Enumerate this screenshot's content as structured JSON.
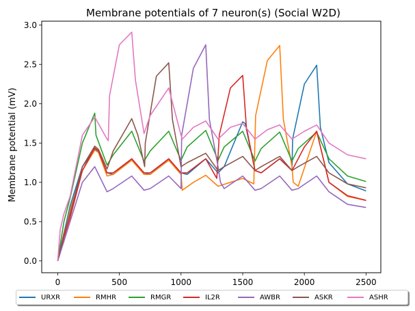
{
  "chart_data": {
    "type": "line",
    "title": "Membrane potentials of 7 neuron(s) (Social W2D)",
    "xlabel": "",
    "ylabel": "Membrane potential (mV)",
    "xlim": [
      -130,
      2620
    ],
    "ylim": [
      -0.15,
      3.05
    ],
    "xticks": [
      0,
      500,
      1000,
      1500,
      2000,
      2500
    ],
    "yticks": [
      0.0,
      0.5,
      1.0,
      1.5,
      2.0,
      2.5,
      3.0
    ],
    "ytick_labels": [
      "0.0",
      "0.5",
      "1.0",
      "1.5",
      "2.0",
      "2.5",
      "3.0"
    ],
    "legend_position": "bottom-below-axes",
    "grid": false,
    "series": [
      {
        "name": "URXR",
        "color": "#1f77b4",
        "points": [
          [
            0,
            0
          ],
          [
            50,
            0.35
          ],
          [
            100,
            0.7
          ],
          [
            200,
            1.2
          ],
          [
            300,
            1.42
          ],
          [
            330,
            1.4
          ],
          [
            400,
            1.12
          ],
          [
            450,
            1.1
          ],
          [
            600,
            1.3
          ],
          [
            700,
            1.12
          ],
          [
            750,
            1.1
          ],
          [
            900,
            1.3
          ],
          [
            1000,
            1.12
          ],
          [
            1050,
            1.1
          ],
          [
            1200,
            1.3
          ],
          [
            1300,
            1.12
          ],
          [
            1350,
            1.2
          ],
          [
            1500,
            1.77
          ],
          [
            1520,
            1.75
          ],
          [
            1600,
            1.15
          ],
          [
            1650,
            1.12
          ],
          [
            1800,
            1.3
          ],
          [
            1900,
            1.15
          ],
          [
            1905,
            1.55
          ],
          [
            2000,
            2.25
          ],
          [
            2100,
            2.49
          ],
          [
            2130,
            1.7
          ],
          [
            2200,
            1.25
          ],
          [
            2350,
            0.98
          ],
          [
            2500,
            0.89
          ]
        ]
      },
      {
        "name": "RMHR",
        "color": "#ff7f0e",
        "points": [
          [
            0,
            0
          ],
          [
            50,
            0.32
          ],
          [
            100,
            0.65
          ],
          [
            200,
            1.15
          ],
          [
            300,
            1.41
          ],
          [
            330,
            1.38
          ],
          [
            400,
            1.08
          ],
          [
            450,
            1.1
          ],
          [
            600,
            1.28
          ],
          [
            700,
            1.1
          ],
          [
            750,
            1.1
          ],
          [
            900,
            1.28
          ],
          [
            1000,
            1.1
          ],
          [
            1010,
            0.9
          ],
          [
            1100,
            1.0
          ],
          [
            1200,
            1.09
          ],
          [
            1300,
            0.95
          ],
          [
            1400,
            1.0
          ],
          [
            1500,
            1.05
          ],
          [
            1590,
            0.98
          ],
          [
            1605,
            1.85
          ],
          [
            1700,
            2.55
          ],
          [
            1800,
            2.74
          ],
          [
            1830,
            1.8
          ],
          [
            1900,
            1.2
          ],
          [
            1910,
            1.0
          ],
          [
            1950,
            0.95
          ],
          [
            2100,
            1.65
          ],
          [
            2200,
            1.0
          ],
          [
            2350,
            0.82
          ],
          [
            2500,
            0.77
          ]
        ]
      },
      {
        "name": "RMGR",
        "color": "#2ca02c",
        "points": [
          [
            0,
            0
          ],
          [
            50,
            0.5
          ],
          [
            100,
            0.8
          ],
          [
            200,
            1.5
          ],
          [
            300,
            1.88
          ],
          [
            310,
            1.6
          ],
          [
            400,
            1.22
          ],
          [
            450,
            1.35
          ],
          [
            600,
            1.65
          ],
          [
            700,
            1.27
          ],
          [
            750,
            1.4
          ],
          [
            900,
            1.65
          ],
          [
            1000,
            1.28
          ],
          [
            1050,
            1.45
          ],
          [
            1200,
            1.66
          ],
          [
            1300,
            1.28
          ],
          [
            1350,
            1.45
          ],
          [
            1500,
            1.65
          ],
          [
            1600,
            1.27
          ],
          [
            1650,
            1.43
          ],
          [
            1800,
            1.64
          ],
          [
            1900,
            1.27
          ],
          [
            1950,
            1.43
          ],
          [
            2100,
            1.64
          ],
          [
            2200,
            1.3
          ],
          [
            2350,
            1.08
          ],
          [
            2500,
            1.01
          ]
        ]
      },
      {
        "name": "IL2R",
        "color": "#d62728",
        "points": [
          [
            0,
            0
          ],
          [
            50,
            0.3
          ],
          [
            100,
            0.55
          ],
          [
            200,
            1.15
          ],
          [
            300,
            1.44
          ],
          [
            330,
            1.4
          ],
          [
            400,
            1.12
          ],
          [
            450,
            1.12
          ],
          [
            600,
            1.3
          ],
          [
            700,
            1.12
          ],
          [
            750,
            1.12
          ],
          [
            900,
            1.3
          ],
          [
            1000,
            1.12
          ],
          [
            1050,
            1.12
          ],
          [
            1200,
            1.3
          ],
          [
            1290,
            1.05
          ],
          [
            1310,
            1.6
          ],
          [
            1400,
            2.2
          ],
          [
            1500,
            2.36
          ],
          [
            1530,
            1.7
          ],
          [
            1600,
            1.15
          ],
          [
            1650,
            1.12
          ],
          [
            1800,
            1.3
          ],
          [
            1900,
            1.15
          ],
          [
            2000,
            1.45
          ],
          [
            2100,
            1.65
          ],
          [
            2200,
            1.0
          ],
          [
            2350,
            0.83
          ],
          [
            2500,
            0.77
          ]
        ]
      },
      {
        "name": "AWBR",
        "color": "#9467bd",
        "points": [
          [
            0,
            0
          ],
          [
            50,
            0.25
          ],
          [
            100,
            0.5
          ],
          [
            200,
            1.0
          ],
          [
            300,
            1.2
          ],
          [
            400,
            0.88
          ],
          [
            450,
            0.92
          ],
          [
            600,
            1.08
          ],
          [
            700,
            0.9
          ],
          [
            750,
            0.92
          ],
          [
            900,
            1.08
          ],
          [
            1000,
            0.92
          ],
          [
            1005,
            1.6
          ],
          [
            1100,
            2.45
          ],
          [
            1200,
            2.75
          ],
          [
            1230,
            1.8
          ],
          [
            1300,
            1.2
          ],
          [
            1320,
            1.0
          ],
          [
            1350,
            0.92
          ],
          [
            1500,
            1.08
          ],
          [
            1600,
            0.9
          ],
          [
            1650,
            0.92
          ],
          [
            1800,
            1.08
          ],
          [
            1900,
            0.9
          ],
          [
            1950,
            0.92
          ],
          [
            2100,
            1.08
          ],
          [
            2200,
            0.88
          ],
          [
            2350,
            0.72
          ],
          [
            2500,
            0.68
          ]
        ]
      },
      {
        "name": "ASKR",
        "color": "#8c564b",
        "points": [
          [
            0,
            0
          ],
          [
            50,
            0.35
          ],
          [
            100,
            0.6
          ],
          [
            200,
            1.2
          ],
          [
            300,
            1.46
          ],
          [
            330,
            1.42
          ],
          [
            400,
            1.17
          ],
          [
            450,
            1.4
          ],
          [
            600,
            1.81
          ],
          [
            650,
            1.6
          ],
          [
            705,
            1.2
          ],
          [
            710,
            1.5
          ],
          [
            800,
            2.35
          ],
          [
            900,
            2.52
          ],
          [
            930,
            1.8
          ],
          [
            1000,
            1.2
          ],
          [
            1050,
            1.25
          ],
          [
            1200,
            1.37
          ],
          [
            1300,
            1.15
          ],
          [
            1350,
            1.2
          ],
          [
            1500,
            1.33
          ],
          [
            1600,
            1.15
          ],
          [
            1650,
            1.2
          ],
          [
            1800,
            1.33
          ],
          [
            1900,
            1.15
          ],
          [
            1950,
            1.2
          ],
          [
            2100,
            1.33
          ],
          [
            2200,
            1.12
          ],
          [
            2350,
            0.98
          ],
          [
            2500,
            0.93
          ]
        ]
      },
      {
        "name": "ASHR",
        "color": "#e377c2",
        "points": [
          [
            0,
            0
          ],
          [
            20,
            0.4
          ],
          [
            50,
            0.6
          ],
          [
            100,
            0.82
          ],
          [
            200,
            1.6
          ],
          [
            300,
            1.83
          ],
          [
            400,
            1.55
          ],
          [
            410,
            1.53
          ],
          [
            420,
            2.1
          ],
          [
            500,
            2.75
          ],
          [
            600,
            2.91
          ],
          [
            630,
            2.3
          ],
          [
            700,
            1.62
          ],
          [
            750,
            1.85
          ],
          [
            900,
            2.2
          ],
          [
            1000,
            1.6
          ],
          [
            1010,
            1.55
          ],
          [
            1100,
            1.7
          ],
          [
            1200,
            1.78
          ],
          [
            1300,
            1.55
          ],
          [
            1400,
            1.7
          ],
          [
            1500,
            1.75
          ],
          [
            1600,
            1.55
          ],
          [
            1700,
            1.67
          ],
          [
            1800,
            1.73
          ],
          [
            1900,
            1.55
          ],
          [
            2000,
            1.65
          ],
          [
            2100,
            1.73
          ],
          [
            2200,
            1.5
          ],
          [
            2350,
            1.35
          ],
          [
            2500,
            1.3
          ]
        ]
      }
    ]
  }
}
